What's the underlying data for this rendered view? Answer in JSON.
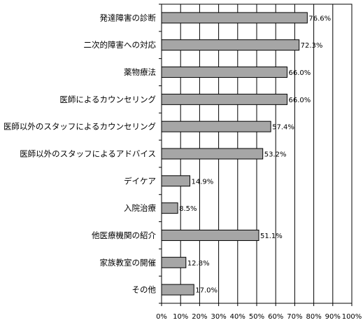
{
  "chart_data": {
    "type": "bar",
    "orientation": "horizontal",
    "categories": [
      "発達障害の診断",
      "二次的障害への対応",
      "薬物療法",
      "医師によるカウンセリング",
      "医師以外のスタッフによるカウンセリング",
      "医師以外のスタッフによるアドバイス",
      "デイケア",
      "入院治療",
      "他医療機関の紹介",
      "家族教室の開催",
      "その他"
    ],
    "values": [
      76.6,
      72.3,
      66.0,
      66.0,
      57.4,
      53.2,
      14.9,
      8.5,
      51.1,
      12.8,
      17.0
    ],
    "value_labels": [
      "76.6%",
      "72.3%",
      "66.0%",
      "66.0%",
      "57.4%",
      "53.2%",
      "14.9%",
      "8.5%",
      "51.1%",
      "12.8%",
      "17.0%"
    ],
    "xlim": [
      0,
      100
    ],
    "xticks": [
      "0%",
      "10%",
      "20%",
      "30%",
      "40%",
      "50%",
      "60%",
      "70%",
      "80%",
      "90%",
      "100%"
    ],
    "grid": true,
    "bar_color": "#a6a6a6",
    "bar_edge_color": "#000000"
  }
}
